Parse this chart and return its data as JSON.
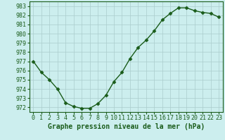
{
  "x": [
    0,
    1,
    2,
    3,
    4,
    5,
    6,
    7,
    8,
    9,
    10,
    11,
    12,
    13,
    14,
    15,
    16,
    17,
    18,
    19,
    20,
    21,
    22,
    23
  ],
  "y": [
    977.0,
    975.8,
    975.0,
    974.0,
    972.5,
    972.1,
    971.9,
    971.9,
    972.4,
    973.3,
    974.8,
    975.8,
    977.3,
    978.5,
    979.3,
    980.3,
    981.5,
    982.2,
    982.8,
    982.8,
    982.5,
    982.3,
    982.2,
    981.8
  ],
  "line_color": "#1a5c1a",
  "marker": "D",
  "marker_size": 2.5,
  "bg_color": "#cceeee",
  "grid_color": "#aacccc",
  "ylabel_values": [
    972,
    973,
    974,
    975,
    976,
    977,
    978,
    979,
    980,
    981,
    982,
    983
  ],
  "ylim": [
    971.5,
    983.5
  ],
  "xlim": [
    -0.5,
    23.5
  ],
  "xlabel": "Graphe pression niveau de la mer (hPa)",
  "tick_fontsize": 6,
  "xlabel_fontsize": 7
}
